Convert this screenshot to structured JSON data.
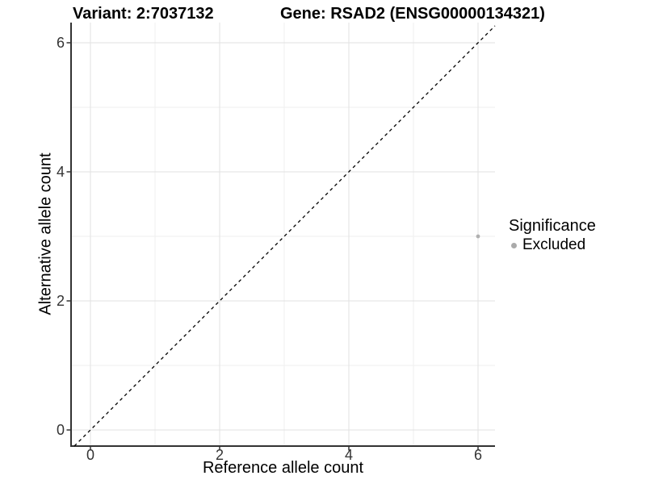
{
  "chart_data": {
    "type": "scatter",
    "titles": {
      "left": "Variant: 2:7037132",
      "right": "Gene: RSAD2 (ENSG00000134321)"
    },
    "xlabel": "Reference allele count",
    "ylabel": "Alternative allele count",
    "xlim": [
      -0.3,
      6.2625
    ],
    "ylim": [
      -0.25,
      6.3125
    ],
    "x_ticks": [
      0,
      2,
      4,
      6
    ],
    "y_ticks": [
      0,
      2,
      4,
      6
    ],
    "x_minor_ticks": [
      1,
      3,
      5
    ],
    "y_minor_ticks": [
      1,
      3,
      5
    ],
    "grid": "on",
    "points": [
      {
        "x": 6,
        "y": 3,
        "significance": "Excluded"
      }
    ],
    "reference_line": {
      "kind": "identity y=x",
      "style": "dashed",
      "color": "#000000"
    },
    "legend": {
      "title": "Significance",
      "position": "right",
      "entries": [
        {
          "label": "Excluded",
          "color": "#aaaaaa"
        }
      ]
    },
    "colors": {
      "background": "#ffffff",
      "grid_major": "#e2e2e2",
      "grid_minor": "#efefef",
      "axis_line": "#333333",
      "tick_mark": "#333333",
      "tick_label": "#333333",
      "point": "#b0b0b0"
    }
  }
}
